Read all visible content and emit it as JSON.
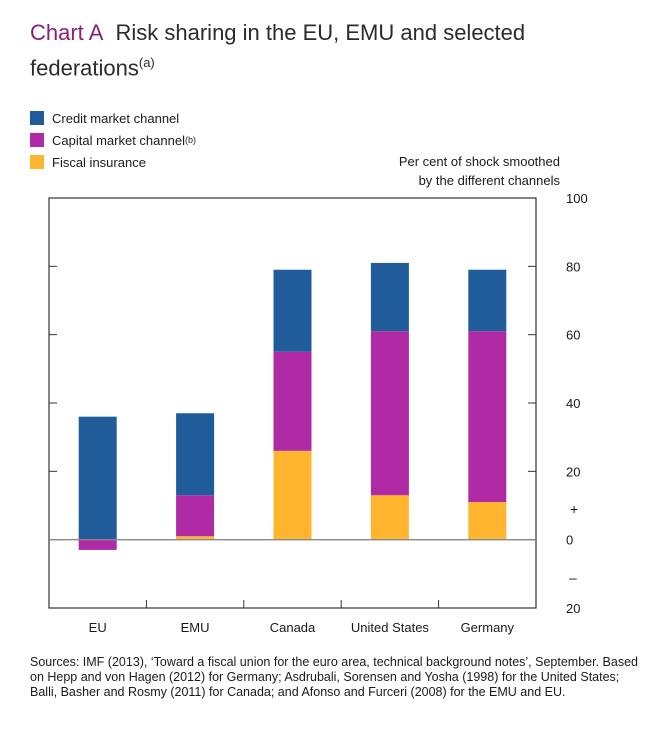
{
  "title": {
    "tag": "Chart A",
    "text": "Risk sharing in the EU, EMU and selected federations",
    "footnote": "(a)"
  },
  "legend": [
    {
      "label": "Credit market channel",
      "footnote": "",
      "color": "#1f5c99"
    },
    {
      "label": "Capital market channel",
      "footnote": "(b)",
      "color": "#b02aa6"
    },
    {
      "label": "Fiscal insurance",
      "footnote": "",
      "color": "#ffb52e"
    }
  ],
  "unit_note": [
    "Per cent of shock smoothed",
    "by the different channels"
  ],
  "chart_data": {
    "type": "bar",
    "stacked": true,
    "categories": [
      "EU",
      "EMU",
      "Canada",
      "United States",
      "Germany"
    ],
    "series": [
      {
        "name": "Fiscal insurance",
        "color": "#ffb52e",
        "values": [
          0,
          1,
          26,
          13,
          11
        ]
      },
      {
        "name": "Capital market channel",
        "color": "#b02aa6",
        "values": [
          -3,
          12,
          29,
          48,
          50
        ]
      },
      {
        "name": "Credit market channel",
        "color": "#1f5c99",
        "values": [
          36,
          24,
          24,
          20,
          18
        ]
      }
    ],
    "ylim": [
      -20,
      100
    ],
    "yticks": [
      {
        "value": 100,
        "label": "100"
      },
      {
        "value": 80,
        "label": "80"
      },
      {
        "value": 60,
        "label": "60"
      },
      {
        "value": 40,
        "label": "40"
      },
      {
        "value": 20,
        "label": "20"
      },
      {
        "value": 0,
        "label": "0"
      },
      {
        "value": -20,
        "label": "20"
      }
    ],
    "sign_markers": {
      "plus": "+",
      "minus": "–"
    },
    "xlabel": "",
    "ylabel": "Per cent of shock smoothed by the different channels",
    "grid": false
  },
  "sources": "Sources: IMF (2013), ‘Toward a fiscal union for the euro area, technical background notes’, September. Based on Hepp and von Hagen (2012) for Germany; Asdrubali, Sorensen and Yosha (1998) for the United States; Balli, Basher and Rosmy (2011) for Canada; and Afonso and Furceri (2008) for the EMU and EU."
}
